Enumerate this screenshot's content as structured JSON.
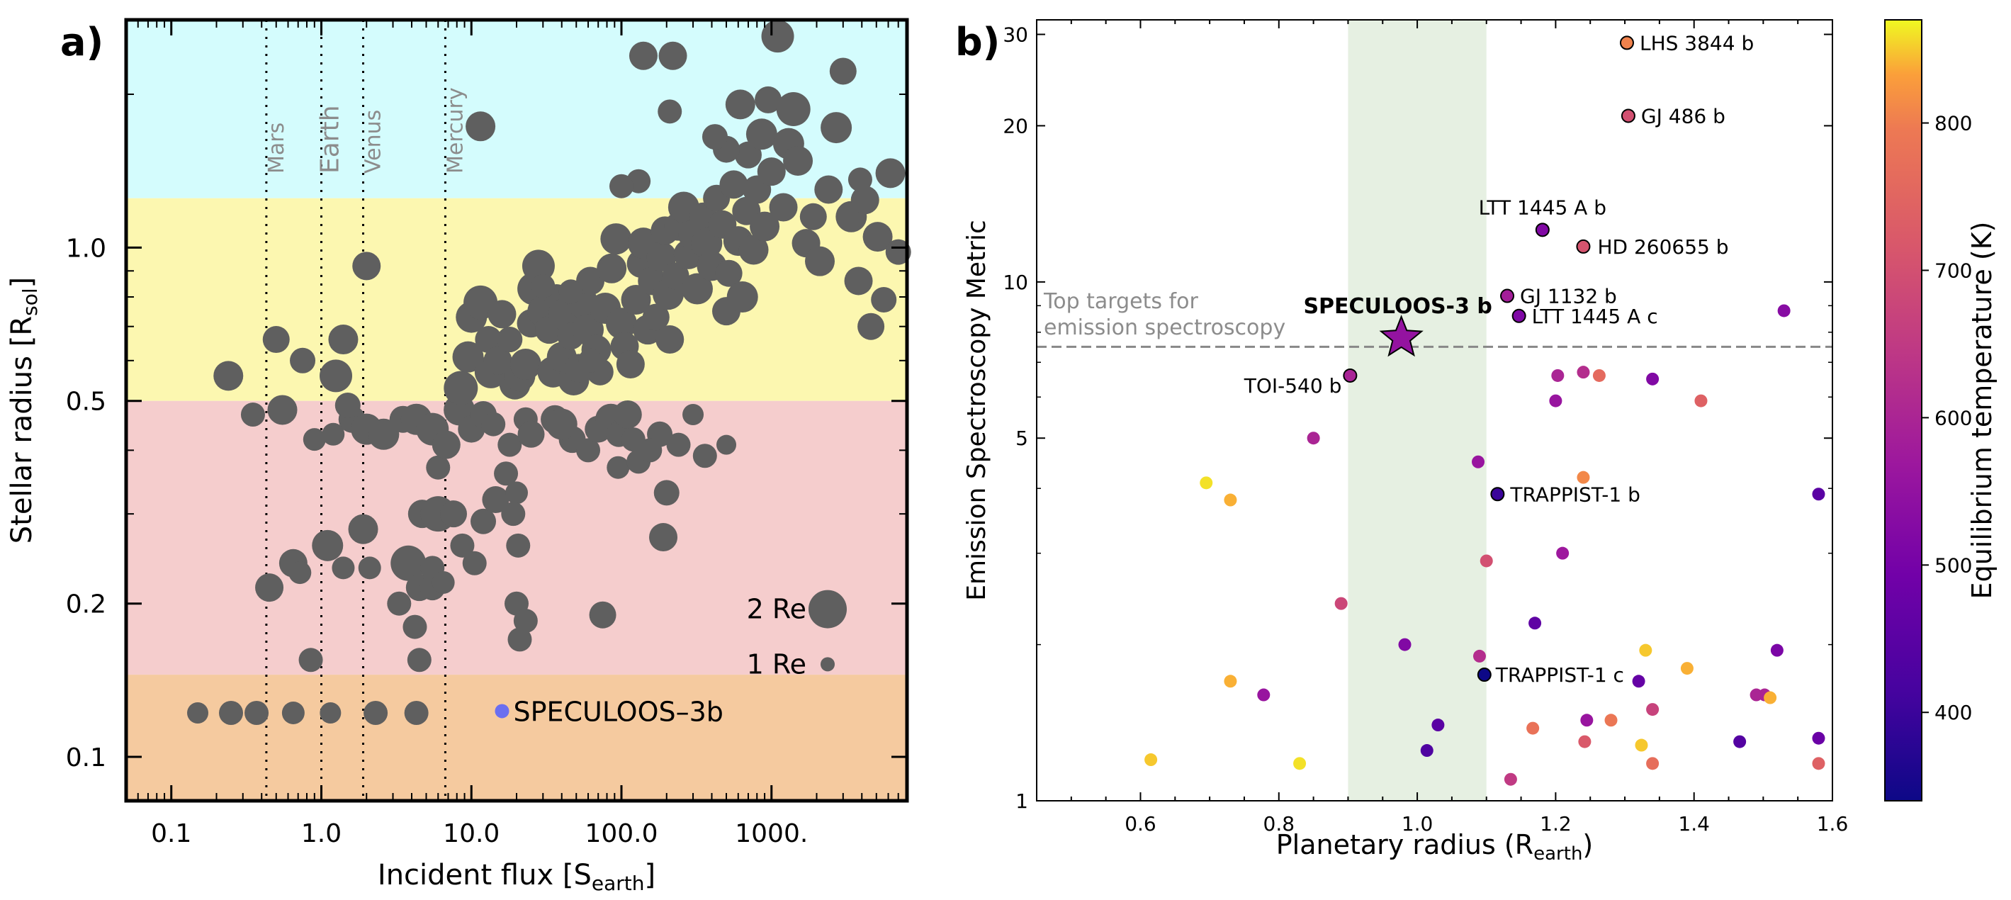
{
  "panel_a": {
    "tag": "a)",
    "solar_labels": [
      "Mars",
      "Earth",
      "Venus",
      "Mercury"
    ],
    "legend": [
      "2 Re",
      "1 Re"
    ],
    "highlight_label": "SPECULOOS–3b",
    "xticks": [
      "0.1",
      "1.0",
      "10.0",
      "100.0",
      "1000."
    ],
    "yticks": [
      "0.1",
      "0.2",
      "0.5",
      "1.0"
    ],
    "colors": {
      "band_top": "#d4fcfd",
      "band_fgk": "#fcf7b0",
      "band_m": "#f5cdcd",
      "band_uc": "#f5ca9f",
      "dot": "#5f5f5f",
      "highlight": "#6b6ff0"
    }
  },
  "panel_b": {
    "tag": "b)",
    "annotation": [
      "Top targets for",
      "emission spectroscopy"
    ],
    "xticks": [
      "0.6",
      "0.8",
      "1.0",
      "1.2",
      "1.4",
      "1.6"
    ],
    "yticks": [
      "1",
      "5",
      "10",
      "20",
      "30"
    ],
    "colorbar": {
      "ticks": [
        "400",
        "500",
        "600",
        "700",
        "800"
      ]
    },
    "colors": {
      "shade": "#e6f0e2",
      "threshold": "#888888"
    }
  },
  "chart_data": [
    {
      "type": "scatter",
      "xlabel": "Incident flux [S",
      "xlabel_sub": "earth",
      "xlabel_end": "]",
      "ylabel": "Stellar radius [R",
      "ylabel_sub": "sol",
      "ylabel_end": "]",
      "xscale": "log",
      "yscale": "log",
      "xlim": [
        0.05,
        8000
      ],
      "ylim": [
        0.082,
        2.8
      ],
      "solar_system": [
        {
          "name": "Mars",
          "x": 0.43
        },
        {
          "name": "Earth",
          "x": 1.0
        },
        {
          "name": "Venus",
          "x": 1.9
        },
        {
          "name": "Mercury",
          "x": 6.7
        }
      ],
      "highlight": {
        "name": "SPECULOOS–3b",
        "x": 16,
        "y": 0.123
      },
      "points": [
        [
          0.15,
          0.122,
          0.8
        ],
        [
          0.25,
          0.122,
          1.0
        ],
        [
          0.37,
          0.122,
          1.0
        ],
        [
          0.65,
          0.122,
          0.9
        ],
        [
          1.15,
          0.122,
          0.8
        ],
        [
          2.3,
          0.122,
          1.0
        ],
        [
          4.3,
          0.122,
          1.0
        ],
        [
          0.24,
          0.56,
          1.4
        ],
        [
          0.35,
          0.47,
          1.0
        ],
        [
          0.55,
          0.48,
          1.4
        ],
        [
          0.45,
          0.215,
          1.3
        ],
        [
          0.85,
          0.155,
          1.0
        ],
        [
          0.65,
          0.24,
          1.3
        ],
        [
          0.72,
          0.23,
          0.9
        ],
        [
          1.1,
          0.26,
          1.5
        ],
        [
          1.4,
          0.235,
          0.9
        ],
        [
          1.9,
          0.28,
          1.4
        ],
        [
          2.1,
          0.235,
          0.9
        ],
        [
          1.6,
          0.46,
          1.2
        ],
        [
          1.5,
          0.49,
          1.1
        ],
        [
          1.25,
          0.56,
          1.6
        ],
        [
          1.4,
          0.66,
          1.4
        ],
        [
          2.0,
          0.92,
          1.3
        ],
        [
          0.5,
          0.66,
          1.2
        ],
        [
          0.75,
          0.6,
          1.1
        ],
        [
          0.9,
          0.42,
          0.9
        ],
        [
          1.2,
          0.43,
          0.9
        ],
        [
          2.0,
          0.44,
          1.5
        ],
        [
          2.6,
          0.43,
          1.5
        ],
        [
          3.5,
          0.46,
          1.2
        ],
        [
          4.3,
          0.46,
          1.5
        ],
        [
          5.5,
          0.44,
          1.6
        ],
        [
          6.0,
          0.37,
          1.0
        ],
        [
          3.8,
          0.24,
          1.8
        ],
        [
          4.5,
          0.215,
          1.2
        ],
        [
          5.5,
          0.215,
          1.1
        ],
        [
          3.3,
          0.2,
          1.0
        ],
        [
          4.5,
          0.155,
          1.0
        ],
        [
          4.2,
          0.18,
          1.0
        ],
        [
          5.5,
          0.235,
          1.0
        ],
        [
          6.5,
          0.22,
          0.9
        ],
        [
          6.8,
          0.41,
          1.3
        ],
        [
          4.7,
          0.3,
          1.3
        ],
        [
          6.0,
          0.3,
          1.8
        ],
        [
          7.6,
          0.3,
          1.2
        ],
        [
          8.7,
          0.26,
          1.0
        ],
        [
          10.5,
          0.24,
          1.0
        ],
        [
          12.0,
          0.29,
          1.1
        ],
        [
          14.5,
          0.32,
          1.2
        ],
        [
          17.0,
          0.36,
          1.0
        ],
        [
          20.0,
          0.33,
          0.9
        ],
        [
          19.0,
          0.3,
          1.0
        ],
        [
          20.5,
          0.26,
          1.0
        ],
        [
          20.0,
          0.2,
          1.0
        ],
        [
          23.0,
          0.185,
          1.0
        ],
        [
          21.0,
          0.17,
          1.0
        ],
        [
          8.3,
          0.48,
          1.5
        ],
        [
          10.0,
          0.44,
          1.2
        ],
        [
          12.0,
          0.47,
          1.2
        ],
        [
          14.0,
          0.45,
          1.0
        ],
        [
          18.0,
          0.41,
          1.0
        ],
        [
          23.0,
          0.46,
          1.0
        ],
        [
          25.0,
          0.43,
          1.2
        ],
        [
          36.0,
          0.46,
          1.3
        ],
        [
          47.0,
          0.42,
          1.2
        ],
        [
          60.0,
          0.4,
          1.0
        ],
        [
          70.0,
          0.44,
          1.2
        ],
        [
          85.0,
          0.46,
          1.5
        ],
        [
          96.0,
          0.43,
          1.1
        ],
        [
          40.0,
          0.45,
          1.5
        ],
        [
          95.0,
          0.37,
          0.9
        ],
        [
          130.0,
          0.38,
          1.0
        ],
        [
          110.0,
          0.47,
          1.3
        ],
        [
          120.0,
          0.42,
          1.0
        ],
        [
          180.0,
          0.43,
          1.1
        ],
        [
          155.0,
          0.4,
          1.0
        ],
        [
          300.0,
          0.47,
          0.8
        ],
        [
          240.0,
          0.41,
          1.0
        ],
        [
          360.0,
          0.39,
          1.0
        ],
        [
          200.0,
          0.33,
          1.1
        ],
        [
          190.0,
          0.27,
          1.3
        ],
        [
          75.0,
          0.19,
          1.2
        ],
        [
          500.0,
          0.41,
          0.7
        ],
        [
          8.5,
          0.53,
          1.7
        ],
        [
          9.5,
          0.61,
          1.5
        ],
        [
          10.0,
          0.73,
          1.5
        ],
        [
          11.5,
          0.78,
          1.7
        ],
        [
          13.0,
          0.66,
          1.2
        ],
        [
          13.5,
          0.57,
          1.6
        ],
        [
          15.0,
          0.6,
          1.3
        ],
        [
          16.0,
          0.74,
          1.3
        ],
        [
          18.0,
          0.66,
          1.1
        ],
        [
          19.5,
          0.54,
          1.5
        ],
        [
          21.0,
          0.56,
          1.5
        ],
        [
          23.0,
          0.59,
          1.5
        ],
        [
          25.0,
          0.71,
          1.3
        ],
        [
          26.0,
          0.83,
          1.6
        ],
        [
          28.0,
          0.92,
          1.6
        ],
        [
          30.0,
          0.75,
          1.5
        ],
        [
          33.0,
          0.69,
          1.3
        ],
        [
          35.0,
          0.57,
          1.5
        ],
        [
          37.0,
          0.8,
          1.1
        ],
        [
          40.0,
          0.61,
          1.4
        ],
        [
          42.0,
          0.74,
          1.6
        ],
        [
          46.0,
          0.67,
          1.2
        ],
        [
          48.0,
          0.55,
          1.5
        ],
        [
          52.0,
          0.58,
          1.3
        ],
        [
          55.0,
          0.78,
          1.5
        ],
        [
          60.0,
          0.69,
          1.5
        ],
        [
          62.0,
          0.86,
          1.3
        ],
        [
          68.0,
          0.63,
          1.4
        ],
        [
          72.0,
          0.57,
          1.2
        ],
        [
          78.0,
          0.76,
          1.5
        ],
        [
          86.0,
          0.91,
          1.4
        ],
        [
          92.0,
          1.04,
          1.5
        ],
        [
          100.0,
          0.71,
          1.5
        ],
        [
          105.0,
          0.64,
          1.3
        ],
        [
          115.0,
          0.59,
          1.3
        ],
        [
          125.0,
          0.79,
          1.4
        ],
        [
          135.0,
          0.93,
          1.3
        ],
        [
          140.0,
          1.02,
          1.5
        ],
        [
          150.0,
          0.69,
          1.4
        ],
        [
          160.0,
          0.86,
          1.3
        ],
        [
          170.0,
          0.73,
          1.2
        ],
        [
          185.0,
          0.96,
          1.4
        ],
        [
          195.0,
          1.08,
          1.3
        ],
        [
          205.0,
          0.81,
          1.5
        ],
        [
          210.0,
          0.66,
          1.3
        ],
        [
          230.0,
          0.88,
          1.2
        ],
        [
          240.0,
          1.1,
          1.3
        ],
        [
          260.0,
          1.2,
          1.5
        ],
        [
          280.0,
          0.97,
          1.4
        ],
        [
          300.0,
          1.06,
          1.4
        ],
        [
          320.0,
          0.83,
          1.5
        ],
        [
          350.0,
          1.15,
          1.3
        ],
        [
          370.0,
          1.02,
          1.5
        ],
        [
          400.0,
          0.92,
          1.4
        ],
        [
          430.0,
          1.25,
          1.2
        ],
        [
          470.0,
          1.11,
          1.3
        ],
        [
          500.0,
          0.75,
          1.3
        ],
        [
          520.0,
          0.89,
          1.2
        ],
        [
          560.0,
          1.33,
          1.3
        ],
        [
          600.0,
          1.03,
          1.4
        ],
        [
          640.0,
          0.8,
          1.5
        ],
        [
          680.0,
          1.18,
          1.3
        ],
        [
          700.0,
          1.52,
          1.2
        ],
        [
          760.0,
          0.99,
          1.4
        ],
        [
          800.0,
          1.3,
          1.3
        ],
        [
          860.0,
          1.67,
          1.5
        ],
        [
          900.0,
          1.1,
          1.4
        ],
        [
          950.0,
          1.95,
          1.2
        ],
        [
          1000.0,
          1.41,
          1.3
        ],
        [
          1100.0,
          2.6,
          1.6
        ],
        [
          1200.0,
          1.2,
          1.3
        ],
        [
          1300.0,
          1.6,
          1.5
        ],
        [
          1400.0,
          1.87,
          1.7
        ],
        [
          1500.0,
          1.48,
          1.4
        ],
        [
          1700.0,
          1.02,
          1.3
        ],
        [
          1900.0,
          1.15,
          1.2
        ],
        [
          2100.0,
          0.94,
          1.4
        ],
        [
          2400.0,
          1.3,
          1.3
        ],
        [
          2700.0,
          1.72,
          1.5
        ],
        [
          3000.0,
          2.22,
          1.2
        ],
        [
          3400.0,
          1.15,
          1.5
        ],
        [
          3800.0,
          0.86,
          1.3
        ],
        [
          4200.0,
          1.24,
          1.3
        ],
        [
          4600.0,
          0.7,
          1.2
        ],
        [
          5100.0,
          1.05,
          1.4
        ],
        [
          5600.0,
          0.79,
          1.1
        ],
        [
          6200.0,
          1.4,
          1.4
        ],
        [
          7000.0,
          0.98,
          1.1
        ],
        [
          3900.0,
          1.36,
          1.0
        ],
        [
          620.0,
          1.91,
          1.4
        ],
        [
          500.0,
          1.56,
          1.2
        ],
        [
          420.0,
          1.65,
          1.1
        ],
        [
          220.0,
          2.38,
          1.3
        ],
        [
          140.0,
          2.38,
          1.3
        ],
        [
          210.0,
          1.85,
          1.0
        ],
        [
          130.0,
          1.35,
          1.0
        ],
        [
          100.0,
          1.32,
          1.0
        ],
        [
          11.5,
          1.73,
          1.4
        ],
        [
          30.0,
          0.84,
          1.0
        ],
        [
          46.0,
          0.82,
          1.0
        ],
        [
          62.0,
          0.6,
          1.0
        ]
      ]
    },
    {
      "type": "scatter",
      "xlabel": "Planetary radius (R",
      "xlabel_sub": "earth",
      "xlabel_end": ")",
      "ylabel": "Emission Spectroscopy Metric",
      "xlim": [
        0.45,
        1.6
      ],
      "ylim": [
        1,
        32
      ],
      "yscale": "log",
      "color_label": "Equilibrium temperature (K)",
      "color_range": [
        340,
        870
      ],
      "shade_x": [
        0.9,
        1.1
      ],
      "threshold_y": 7.5,
      "highlight": {
        "name": "SPECULOOS-3 b",
        "x": 0.977,
        "y": 7.8,
        "t": 553
      },
      "labeled": [
        {
          "name": "LHS 3844 b",
          "x": 1.303,
          "y": 28.9,
          "t": 805
        },
        {
          "name": "GJ 486 b",
          "x": 1.305,
          "y": 20.9,
          "t": 701
        },
        {
          "name": "LTT 1445 A b",
          "x": 1.181,
          "y": 12.6,
          "t": 520
        },
        {
          "name": "HD 260655 b",
          "x": 1.24,
          "y": 11.7,
          "t": 709
        },
        {
          "name": "GJ 1132 b",
          "x": 1.13,
          "y": 9.4,
          "t": 584
        },
        {
          "name": "LTT 1445 A c",
          "x": 1.147,
          "y": 8.6,
          "t": 516
        },
        {
          "name": "TOI-540 b",
          "x": 0.903,
          "y": 6.6,
          "t": 595
        },
        {
          "name": "TRAPPIST-1 b",
          "x": 1.116,
          "y": 3.9,
          "t": 398
        },
        {
          "name": "TRAPPIST-1 c",
          "x": 1.097,
          "y": 1.75,
          "t": 340
        }
      ],
      "points": [
        [
          1.53,
          8.8,
          530
        ],
        [
          1.24,
          6.7,
          620
        ],
        [
          1.263,
          6.6,
          760
        ],
        [
          1.203,
          6.6,
          600
        ],
        [
          1.34,
          6.5,
          520
        ],
        [
          1.2,
          5.9,
          560
        ],
        [
          1.41,
          5.9,
          740
        ],
        [
          0.85,
          5.0,
          600
        ],
        [
          1.088,
          4.5,
          560
        ],
        [
          1.24,
          4.2,
          810
        ],
        [
          0.695,
          4.1,
          860
        ],
        [
          0.73,
          3.8,
          840
        ],
        [
          1.58,
          3.9,
          450
        ],
        [
          1.21,
          3.0,
          570
        ],
        [
          1.1,
          2.9,
          700
        ],
        [
          0.89,
          2.4,
          680
        ],
        [
          1.17,
          2.2,
          460
        ],
        [
          0.982,
          2.0,
          520
        ],
        [
          1.09,
          1.9,
          620
        ],
        [
          1.33,
          1.95,
          850
        ],
        [
          1.39,
          1.8,
          840
        ],
        [
          1.52,
          1.95,
          510
        ],
        [
          1.32,
          1.7,
          470
        ],
        [
          0.73,
          1.7,
          840
        ],
        [
          0.778,
          1.6,
          560
        ],
        [
          1.502,
          1.6,
          600
        ],
        [
          1.49,
          1.6,
          600
        ],
        [
          1.51,
          1.58,
          840
        ],
        [
          1.34,
          1.5,
          670
        ],
        [
          1.245,
          1.43,
          560
        ],
        [
          1.28,
          1.43,
          790
        ],
        [
          1.03,
          1.4,
          450
        ],
        [
          1.167,
          1.38,
          780
        ],
        [
          1.242,
          1.3,
          720
        ],
        [
          1.324,
          1.28,
          850
        ],
        [
          1.58,
          1.32,
          480
        ],
        [
          1.466,
          1.3,
          440
        ],
        [
          0.615,
          1.2,
          850
        ],
        [
          0.83,
          1.18,
          860
        ],
        [
          1.014,
          1.25,
          430
        ],
        [
          1.34,
          1.18,
          770
        ],
        [
          1.58,
          1.18,
          740
        ],
        [
          1.135,
          1.1,
          650
        ]
      ]
    }
  ]
}
